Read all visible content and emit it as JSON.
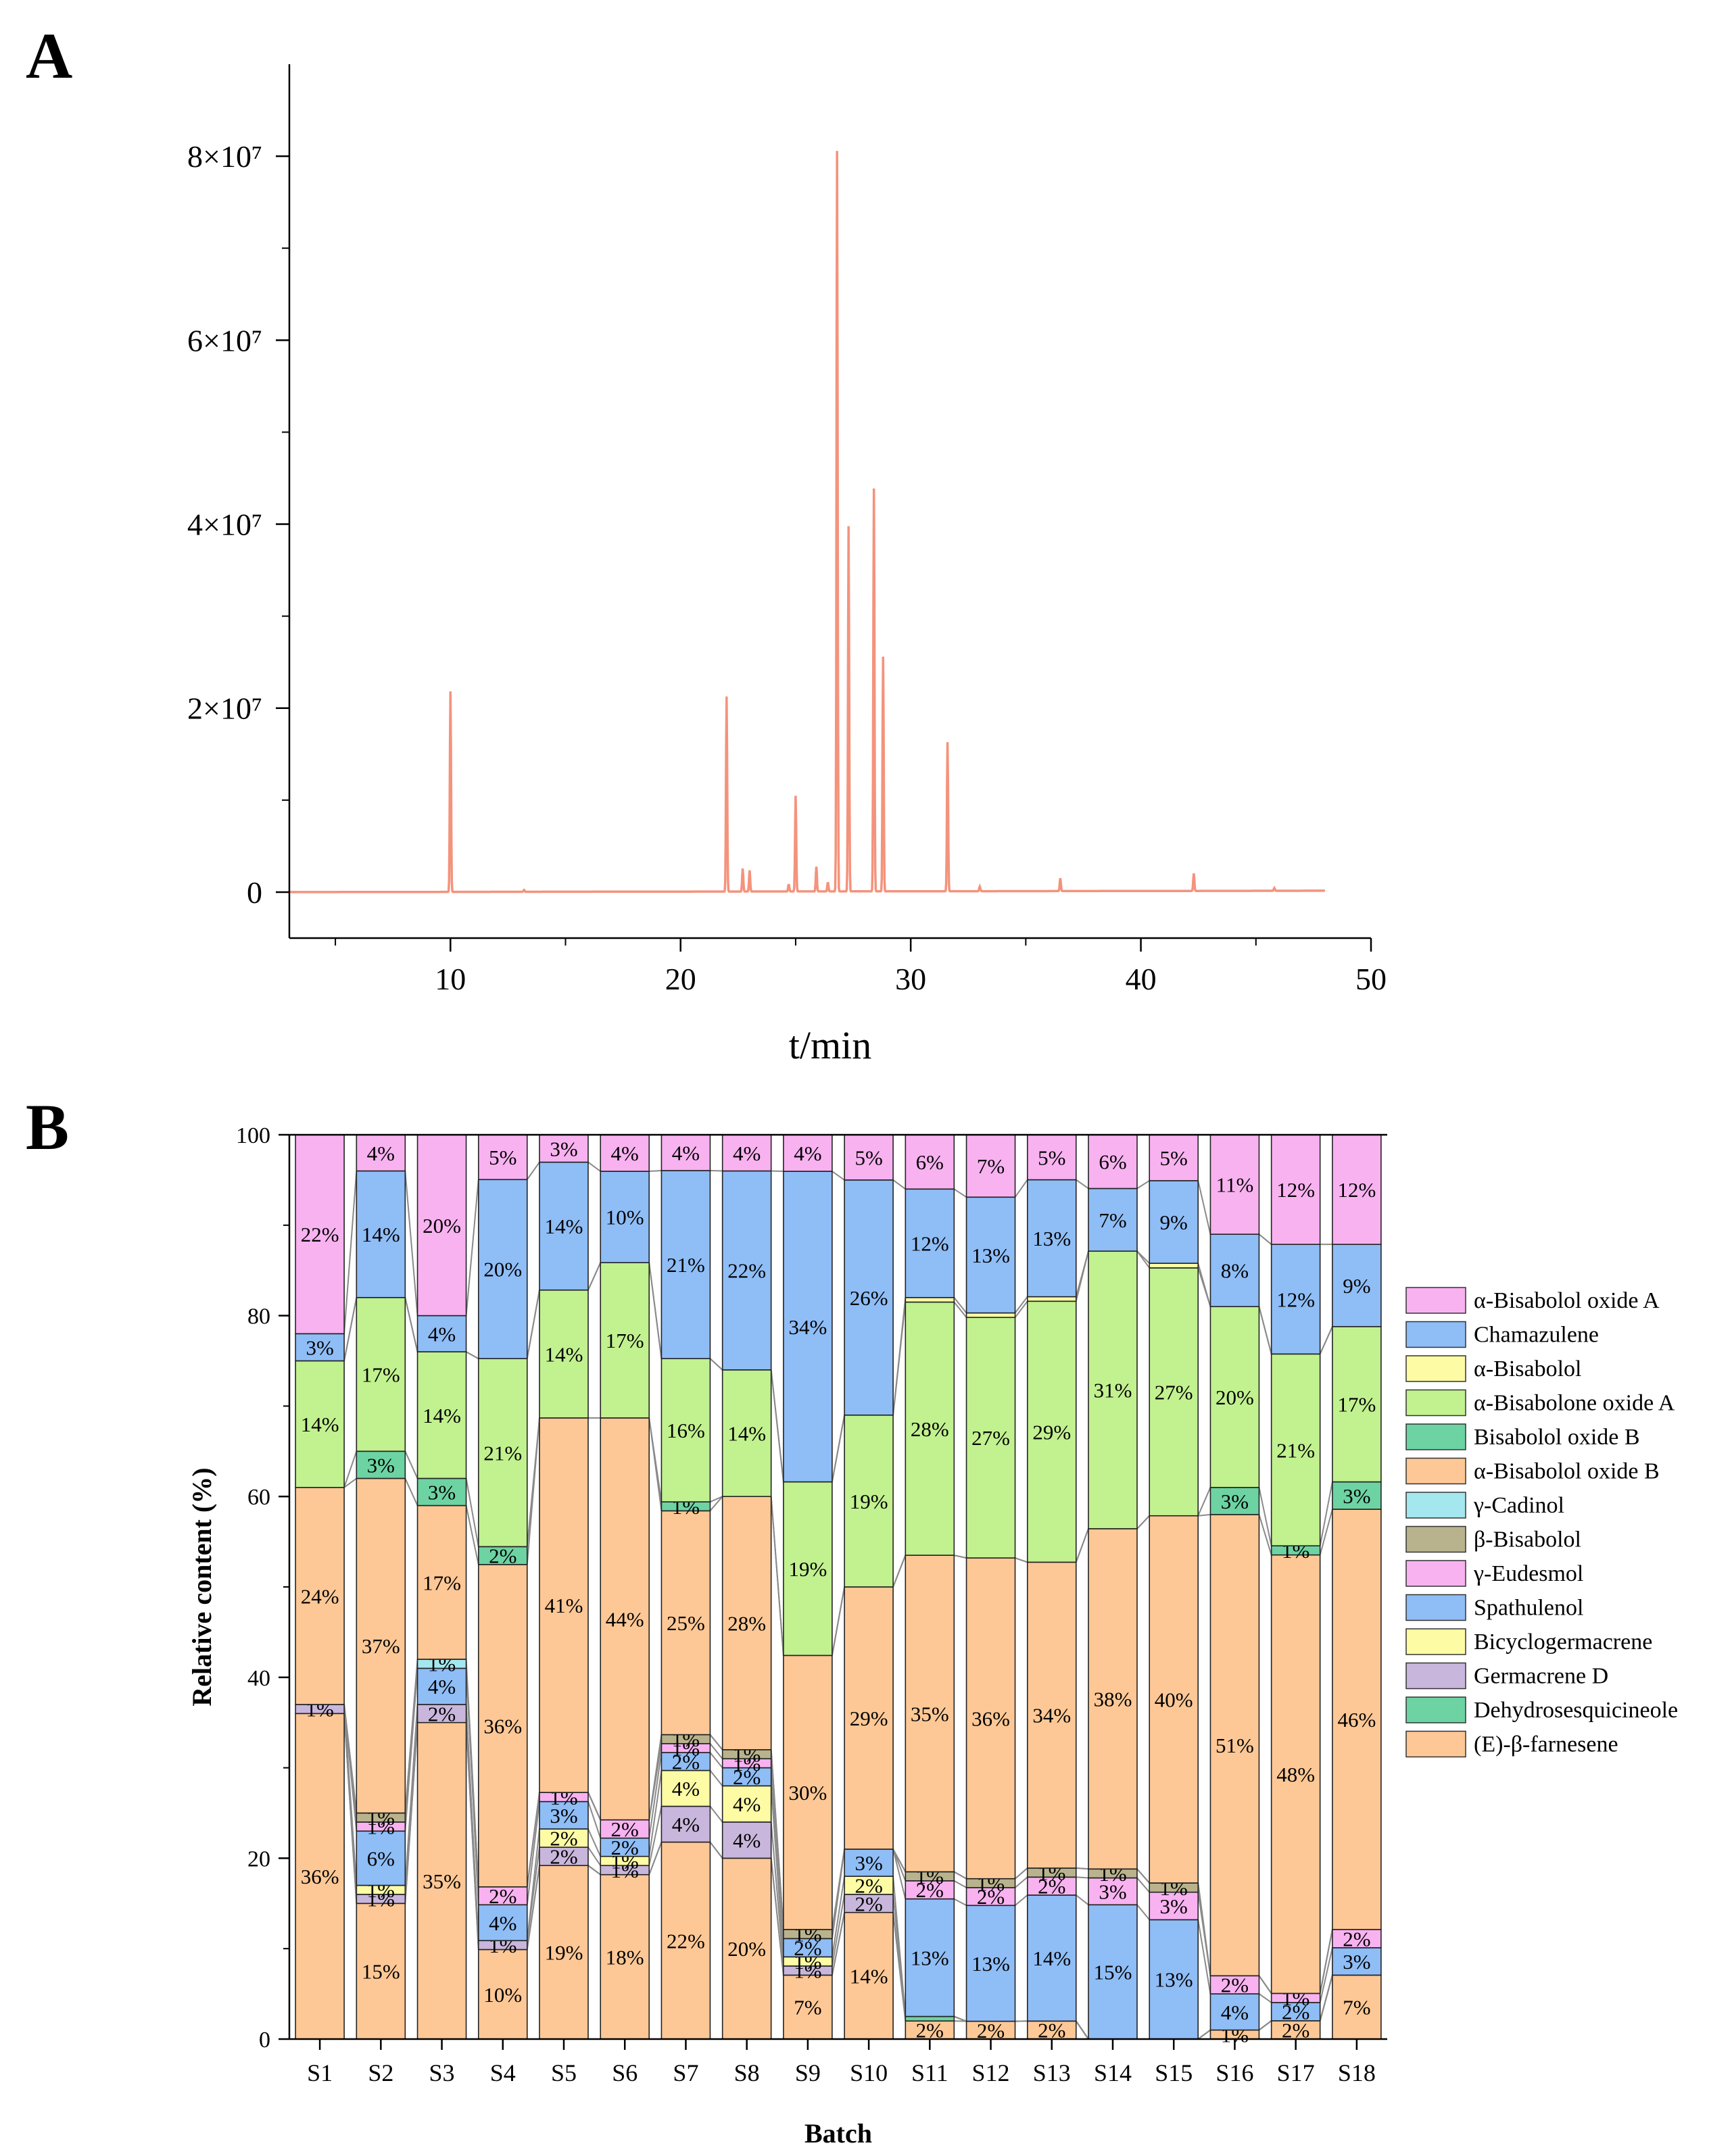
{
  "panels": {
    "a": "A",
    "b": "B"
  },
  "chart_data": [
    {
      "type": "line",
      "panel": "A",
      "xlabel": "t/min",
      "ylabel": "",
      "xlim": [
        3,
        50
      ],
      "ylim": [
        -5000000,
        90000000
      ],
      "xticks": [
        10,
        20,
        30,
        40,
        50
      ],
      "xtick_labels": [
        "10",
        "20",
        "30",
        "40",
        "50"
      ],
      "yticks": [
        0,
        20000000,
        40000000,
        60000000,
        80000000
      ],
      "ytick_labels": [
        "0",
        "2×10⁷",
        "4×10⁷",
        "6×10⁷",
        "8×10⁷"
      ],
      "color": "#f4937c",
      "x_start": 3,
      "x_end": 48,
      "baseline": 0,
      "peaks": [
        {
          "x": 10.0,
          "y": 21800000
        },
        {
          "x": 13.2,
          "y": 200000
        },
        {
          "x": 22.0,
          "y": 21200000
        },
        {
          "x": 22.7,
          "y": 2500000
        },
        {
          "x": 23.0,
          "y": 2300000
        },
        {
          "x": 24.7,
          "y": 800000
        },
        {
          "x": 25.0,
          "y": 10400000
        },
        {
          "x": 25.9,
          "y": 2700000
        },
        {
          "x": 26.4,
          "y": 1000000
        },
        {
          "x": 26.8,
          "y": 80500000
        },
        {
          "x": 27.3,
          "y": 39700000
        },
        {
          "x": 28.4,
          "y": 43800000
        },
        {
          "x": 28.8,
          "y": 25500000
        },
        {
          "x": 31.6,
          "y": 16200000
        },
        {
          "x": 33.0,
          "y": 500000
        },
        {
          "x": 36.5,
          "y": 1400000
        },
        {
          "x": 42.3,
          "y": 1900000
        },
        {
          "x": 45.8,
          "y": 300000
        }
      ]
    },
    {
      "type": "bar",
      "stacked": true,
      "panel": "B",
      "xlabel": "Batch",
      "ylabel": "Relative content (%)",
      "ylim": [
        0,
        100
      ],
      "yticks": [
        0,
        20,
        40,
        60,
        80,
        100
      ],
      "grid": false,
      "legend_position": "right",
      "categories": [
        "S1",
        "S2",
        "S3",
        "S4",
        "S5",
        "S6",
        "S7",
        "S8",
        "S9",
        "S10",
        "S11",
        "S12",
        "S13",
        "S14",
        "S15",
        "S16",
        "S17",
        "S18"
      ],
      "series": [
        {
          "name": "(E)-β-farnesene",
          "color": "#fdc896",
          "values": [
            36,
            15,
            35,
            10,
            19,
            18,
            22,
            20,
            7,
            14,
            2,
            2,
            2,
            0,
            0,
            1,
            2,
            7
          ]
        },
        {
          "name": "Dehydrosesquicineole",
          "color": "#6dd3a3",
          "values": [
            0,
            0,
            0,
            0,
            0,
            0,
            0,
            0,
            0,
            0,
            0.5,
            0,
            0,
            0,
            0,
            0,
            0,
            0
          ]
        },
        {
          "name": "Germacrene D",
          "color": "#c9b6dc",
          "values": [
            1,
            1,
            2,
            1,
            2,
            1,
            4,
            4,
            1,
            2,
            0,
            0,
            0,
            0,
            0,
            0,
            0,
            0
          ]
        },
        {
          "name": "Bicyclogermacrene",
          "color": "#fdfba4",
          "values": [
            0,
            1,
            0,
            0,
            2,
            1,
            4,
            4,
            1,
            2,
            0,
            0,
            0,
            0,
            0,
            0,
            0,
            0
          ]
        },
        {
          "name": "Spathulenol",
          "color": "#8fbdf6",
          "values": [
            0,
            6,
            4,
            4,
            3,
            2,
            2,
            2,
            2,
            3,
            13,
            13,
            14,
            15,
            13,
            4,
            2,
            3
          ]
        },
        {
          "name": "γ-Eudesmol",
          "color": "#f8b2f0",
          "values": [
            0,
            1,
            0,
            2,
            1,
            2,
            1,
            1,
            0,
            0,
            2,
            2,
            2,
            3,
            3,
            2,
            1,
            2
          ]
        },
        {
          "name": "β-Bisabolol",
          "color": "#b8b38c",
          "values": [
            0,
            1,
            0,
            0,
            0,
            0,
            1,
            1,
            1,
            0,
            1,
            1,
            1,
            1,
            1,
            0,
            0,
            0
          ]
        },
        {
          "name": "γ-Cadinol",
          "color": "#a5e7ee",
          "values": [
            0,
            0,
            1,
            0,
            0,
            0,
            0,
            0,
            0,
            0,
            0,
            0,
            0,
            0,
            0,
            0,
            0,
            0
          ]
        },
        {
          "name": "α-Bisabolol oxide B",
          "color": "#fdc896",
          "values": [
            24,
            37,
            17,
            36,
            41,
            44,
            25,
            28,
            30,
            29,
            35,
            36,
            34,
            38,
            40,
            51,
            48,
            46
          ]
        },
        {
          "name": "Bisabolol oxide B",
          "color": "#6dd3a3",
          "values": [
            0,
            3,
            3,
            2,
            0,
            0,
            1,
            0,
            0,
            0,
            0,
            0,
            0,
            0,
            0,
            3,
            1,
            3
          ]
        },
        {
          "name": "α-Bisabolone oxide A",
          "color": "#c2f190",
          "values": [
            14,
            17,
            14,
            21,
            14,
            17,
            16,
            14,
            19,
            19,
            28,
            27,
            29,
            31,
            27,
            20,
            21,
            17
          ]
        },
        {
          "name": "α-Bisabolol",
          "color": "#fdfba4",
          "values": [
            0,
            0,
            0,
            0,
            0,
            0,
            0,
            0,
            0,
            0,
            0.5,
            0.5,
            0.5,
            0,
            0.5,
            0,
            0,
            0
          ]
        },
        {
          "name": "Chamazulene",
          "color": "#8fbdf6",
          "values": [
            3,
            14,
            4,
            20,
            14,
            10,
            21,
            22,
            34,
            26,
            12,
            13,
            13,
            7,
            9,
            8,
            12,
            9
          ]
        },
        {
          "name": "α-Bisabolol oxide A",
          "color": "#f8b2f0",
          "values": [
            22,
            4,
            20,
            5,
            3,
            4,
            4,
            4,
            4,
            5,
            6,
            7,
            5,
            6,
            5,
            11,
            12,
            12
          ]
        }
      ]
    }
  ]
}
